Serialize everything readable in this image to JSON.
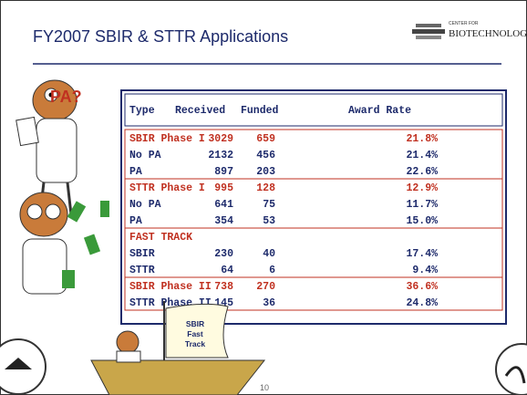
{
  "header": {
    "title": "FY2007 SBIR & STTR Applications",
    "logo": [
      "CENTER FOR",
      "BIOTECHNOLOGY"
    ]
  },
  "bubble": "PA?",
  "table": {
    "header": [
      "Type",
      "Received",
      "Funded",
      "Award Rate"
    ],
    "groups": [
      {
        "rows": [
          [
            "SBIR Phase I",
            "3029",
            "659",
            "21.8%"
          ],
          [
            "No PA",
            "2132",
            "456",
            "21.4%"
          ],
          [
            "PA",
            "897",
            "203",
            "22.6%"
          ]
        ]
      },
      {
        "rows": [
          [
            "STTR Phase I",
            "995",
            "128",
            "12.9%"
          ],
          [
            "No PA",
            "641",
            "75",
            "11.7%"
          ],
          [
            "PA",
            "354",
            "53",
            "15.0%"
          ]
        ]
      },
      {
        "rows": [
          [
            "FAST TRACK"
          ],
          [
            "SBIR",
            "230",
            "40",
            "17.4%"
          ],
          [
            "STTR",
            "64",
            "6",
            "9.4%"
          ]
        ]
      },
      {
        "rows": [
          [
            "SBIR Phase II",
            "738",
            "270",
            "36.6%"
          ],
          [
            "STTR Phase II",
            "145",
            "36",
            "24.8%"
          ]
        ]
      }
    ]
  },
  "sail": [
    "SBIR",
    "Fast",
    "Track"
  ],
  "page_number": "10"
}
